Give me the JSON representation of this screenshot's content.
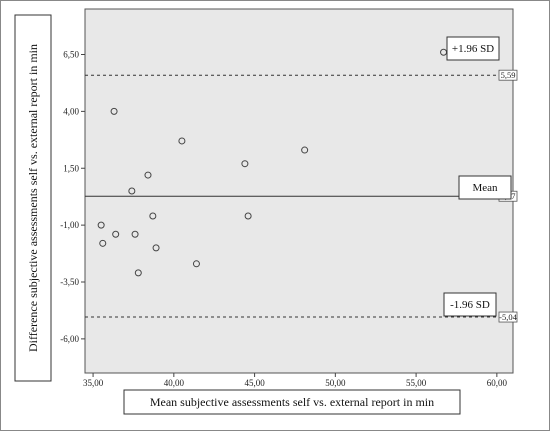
{
  "chart_data": {
    "type": "scatter",
    "title": "",
    "xlabel": "Mean subjective assessments self vs. external report in min",
    "ylabel": "Difference subjective assessments self vs. external report in min",
    "xlim": [
      34.5,
      61
    ],
    "ylim": [
      -7.5,
      8.5
    ],
    "x_ticks": [
      35,
      40,
      45,
      50,
      55,
      60
    ],
    "x_tick_labels": [
      "35,00",
      "40,00",
      "45,00",
      "50,00",
      "55,00",
      "60,00"
    ],
    "y_ticks": [
      6.5,
      4,
      1.5,
      -1,
      -3.5,
      -6
    ],
    "y_tick_labels": [
      "6,50",
      "4,00",
      "1,50",
      "-1,00",
      "-3,50",
      "-6,00"
    ],
    "points": [
      {
        "x": 35.5,
        "y": -1.0
      },
      {
        "x": 35.6,
        "y": -1.8
      },
      {
        "x": 36.3,
        "y": 4.0
      },
      {
        "x": 36.4,
        "y": -1.4
      },
      {
        "x": 37.4,
        "y": 0.5
      },
      {
        "x": 37.6,
        "y": -1.4
      },
      {
        "x": 37.8,
        "y": -3.1
      },
      {
        "x": 38.4,
        "y": 1.2
      },
      {
        "x": 38.7,
        "y": -0.6
      },
      {
        "x": 38.9,
        "y": -2.0
      },
      {
        "x": 40.5,
        "y": 2.7
      },
      {
        "x": 41.4,
        "y": -2.7
      },
      {
        "x": 44.4,
        "y": 1.7
      },
      {
        "x": 44.6,
        "y": -0.6
      },
      {
        "x": 48.1,
        "y": 2.3
      },
      {
        "x": 56.7,
        "y": 6.6
      }
    ],
    "reference_lines": [
      {
        "value": 5.59,
        "label": "5,59",
        "style": "dashed"
      },
      {
        "value": 0.27,
        "label": "0,27",
        "style": "solid"
      },
      {
        "value": -5.04,
        "label": "-5,04",
        "style": "dashed"
      }
    ],
    "annotations": {
      "upper": "+1.96 SD",
      "mean": "Mean",
      "lower": "-1.96 SD"
    },
    "grid": false,
    "legend": "none",
    "colors": {
      "plot_background": "#e8e8e8",
      "marker_stroke": "#444444",
      "line": "#333333"
    }
  }
}
